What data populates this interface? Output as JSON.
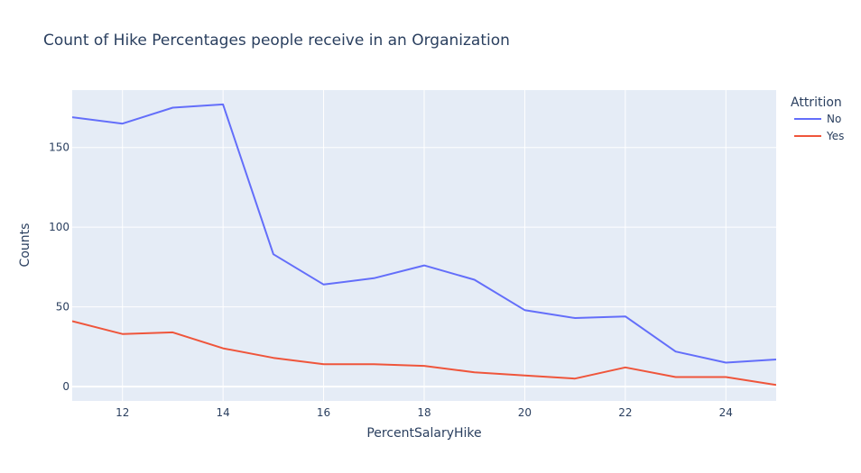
{
  "chart_data": {
    "type": "line",
    "title": "Count of Hike Percentages people receive in an Organization",
    "xlabel": "PercentSalaryHike",
    "ylabel": "Counts",
    "xlim": [
      11,
      25
    ],
    "ylim": [
      -9,
      186
    ],
    "xticks": [
      12,
      14,
      16,
      18,
      20,
      22,
      24
    ],
    "yticks": [
      0,
      50,
      100,
      150
    ],
    "x": [
      11,
      12,
      13,
      14,
      15,
      16,
      17,
      18,
      19,
      20,
      21,
      22,
      23,
      24,
      25
    ],
    "series": [
      {
        "name": "No",
        "color": "#636efa",
        "values": [
          169,
          165,
          175,
          177,
          83,
          64,
          68,
          76,
          67,
          48,
          43,
          44,
          22,
          15,
          17
        ]
      },
      {
        "name": "Yes",
        "color": "#ef553b",
        "values": [
          41,
          33,
          34,
          24,
          18,
          14,
          14,
          13,
          9,
          7,
          5,
          12,
          6,
          6,
          1
        ]
      }
    ],
    "legend": {
      "title": "Attrition",
      "position": "right"
    },
    "grid": true,
    "plot_background": "#e5ecf6",
    "grid_color": "#ffffff"
  }
}
